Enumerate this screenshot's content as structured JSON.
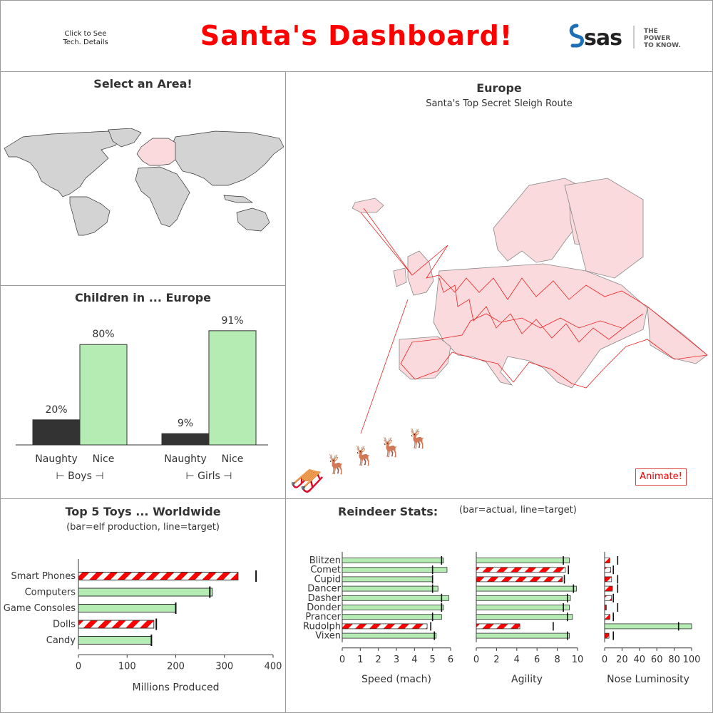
{
  "header": {
    "title": "Santa's Dashboard!",
    "tech_link": "Click to See Tech. Details",
    "logo": {
      "brand": "sas",
      "tagline_1": "THE",
      "tagline_2": "POWER",
      "tagline_3": "TO KNOW."
    }
  },
  "colors": {
    "title": "#ff0000",
    "nice": "#b4ecb4",
    "naughty": "#333333",
    "candy_red": "#ff0000",
    "map_gray": "#d3d3d3",
    "map_pink": "#fadadd",
    "sleigh": "#ff0000"
  },
  "area_select": {
    "title": "Select an Area!",
    "highlighted_region": "Europe"
  },
  "europe_map": {
    "title": "Europe",
    "subtitle": "Santa's Top Secret Sleigh Route",
    "animate_label": "Animate!"
  },
  "chart_data": [
    {
      "type": "bar",
      "title": "Children in ... Europe",
      "groups": [
        "Boys",
        "Girls"
      ],
      "categories": [
        "Naughty",
        "Nice"
      ],
      "series": [
        {
          "group": "Boys",
          "values": [
            20,
            80
          ],
          "labels": [
            "20%",
            "80%"
          ]
        },
        {
          "group": "Girls",
          "values": [
            9,
            91
          ],
          "labels": [
            "9%",
            "91%"
          ]
        }
      ],
      "group_labels": [
        "⊢ Boys ⊣",
        "⊢ Girls ⊣"
      ],
      "ylim": [
        0,
        100
      ]
    },
    {
      "type": "bar",
      "orientation": "horizontal",
      "title": "Top 5 Toys ... Worldwide",
      "subtitle": "(bar=elf production, line=target)",
      "categories": [
        "Smart Phones",
        "Computers",
        "Game Consoles",
        "Dolls",
        "Candy"
      ],
      "values": [
        328,
        275,
        200,
        155,
        150
      ],
      "targets": [
        365,
        270,
        200,
        160,
        150
      ],
      "below_target": [
        true,
        false,
        false,
        true,
        false
      ],
      "xlabel": "Millions Produced",
      "xlim": [
        0,
        400
      ],
      "xticks": [
        "0",
        "100",
        "200",
        "300",
        "400"
      ]
    },
    {
      "type": "bar",
      "orientation": "horizontal",
      "title": "Reindeer Stats:",
      "subtitle": "(bar=actual, line=target)",
      "categories": [
        "Blitzen",
        "Comet",
        "Cupid",
        "Dancer",
        "Dasher",
        "Donder",
        "Prancer",
        "Rudolph",
        "Vixen"
      ],
      "panels": [
        {
          "xlabel": "Speed (mach)",
          "xlim": [
            0,
            6
          ],
          "xticks": [
            "0",
            "1",
            "2",
            "3",
            "4",
            "5",
            "6"
          ],
          "values": [
            5.6,
            5.8,
            5.0,
            5.3,
            5.9,
            5.6,
            5.5,
            4.7,
            5.2
          ],
          "targets": [
            5.5,
            5.0,
            5.0,
            5.0,
            5.5,
            5.5,
            5.0,
            4.9,
            5.1
          ],
          "below_target": [
            false,
            false,
            false,
            false,
            false,
            false,
            false,
            true,
            false
          ]
        },
        {
          "xlabel": "Agility",
          "xlim": [
            0,
            10
          ],
          "xticks": [
            "0",
            "2",
            "4",
            "6",
            "8",
            "10"
          ],
          "values": [
            9.2,
            8.8,
            8.5,
            9.9,
            9.3,
            9.2,
            9.5,
            4.3,
            9.2
          ],
          "targets": [
            8.6,
            9.1,
            8.7,
            9.6,
            9.0,
            8.6,
            9.0,
            7.6,
            9.0
          ],
          "below_target": [
            false,
            true,
            true,
            false,
            false,
            false,
            false,
            true,
            false
          ]
        },
        {
          "xlabel": "Nose Luminosity",
          "xlim": [
            0,
            100
          ],
          "xticks": [
            "0",
            "20",
            "40",
            "60",
            "80",
            "100"
          ],
          "values": [
            6,
            7,
            8,
            9,
            8,
            2,
            6,
            100,
            5
          ],
          "targets": [
            15,
            10,
            15,
            15,
            10,
            15,
            10,
            85,
            10
          ],
          "below_target": [
            true,
            true,
            true,
            true,
            true,
            true,
            true,
            false,
            true
          ]
        }
      ]
    }
  ]
}
